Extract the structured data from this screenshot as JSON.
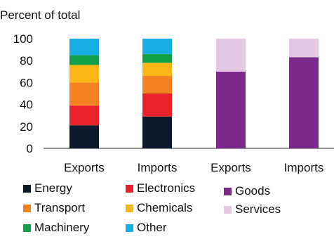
{
  "chart_data": {
    "type": "bar",
    "stacked": true,
    "ylabel": "Percent of total",
    "ylim": [
      0,
      100
    ],
    "yticks": [
      0,
      20,
      40,
      60,
      80,
      100
    ],
    "grid": false,
    "legend_position": "bottom",
    "categories": [
      "Exports",
      "Imports",
      "Exports",
      "Imports"
    ],
    "series": [
      {
        "name": "Energy",
        "color": "#0d1a2b",
        "values": [
          21,
          29,
          null,
          null
        ]
      },
      {
        "name": "Electronics",
        "color": "#e8212b",
        "values": [
          18,
          21,
          null,
          null
        ]
      },
      {
        "name": "Transport",
        "color": "#f58220",
        "values": [
          21,
          16,
          null,
          null
        ]
      },
      {
        "name": "Chemicals",
        "color": "#fbb715",
        "values": [
          16,
          12,
          null,
          null
        ]
      },
      {
        "name": "Machinery",
        "color": "#12a04b",
        "values": [
          9,
          8,
          null,
          null
        ]
      },
      {
        "name": "Other",
        "color": "#14aee5",
        "values": [
          15,
          14,
          null,
          null
        ]
      },
      {
        "name": "Goods",
        "color": "#7b2a8c",
        "values": [
          null,
          null,
          70,
          83
        ]
      },
      {
        "name": "Services",
        "color": "#e3c9e3",
        "values": [
          null,
          null,
          30,
          17
        ]
      }
    ]
  }
}
